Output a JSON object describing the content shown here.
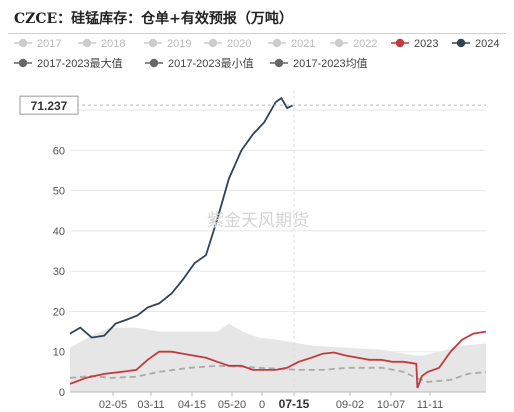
{
  "title": "CZCE：硅锰库存：仓单+有效预报（万吨）",
  "watermark": "紫金天风期货",
  "cursor": {
    "y_readout": "71.237",
    "x_readout": "07-15"
  },
  "colors": {
    "s2023": "#c23a3d",
    "s2024": "#2f4556",
    "inactive": "#cccccc",
    "stat": "#666666",
    "band": "#e6e6e6",
    "mean": "#aaaaaa"
  },
  "chart_data": {
    "type": "line",
    "title": "CZCE：硅锰库存：仓单+有效预报（万吨）",
    "xlabel": "",
    "ylabel": "",
    "ylim": [
      0,
      75
    ],
    "yticks": [
      0,
      10,
      20,
      30,
      40,
      50,
      60,
      70
    ],
    "xticks": [
      "02-05",
      "03-11",
      "04-15",
      "05-20",
      "0",
      "07-15",
      "09-02",
      "10-07",
      "11-11"
    ],
    "grid": true,
    "legend_position": "top",
    "legend": [
      {
        "label": "2017",
        "active": false
      },
      {
        "label": "2018",
        "active": false
      },
      {
        "label": "2019",
        "active": false
      },
      {
        "label": "2020",
        "active": false
      },
      {
        "label": "2021",
        "active": false
      },
      {
        "label": "2022",
        "active": false
      },
      {
        "label": "2023",
        "active": true
      },
      {
        "label": "2024",
        "active": true
      },
      {
        "label": "2017-2023最大值",
        "active": true
      },
      {
        "label": "2017-2023最小值",
        "active": true
      },
      {
        "label": "2017-2023均值",
        "active": true
      }
    ],
    "series": [
      {
        "name": "2024",
        "x": [
          "01-01",
          "01-10",
          "01-20",
          "01-31",
          "02-10",
          "02-20",
          "03-01",
          "03-10",
          "03-20",
          "03-31",
          "04-10",
          "04-20",
          "04-30",
          "05-10",
          "05-20",
          "05-31",
          "06-10",
          "06-20",
          "06-30",
          "07-05",
          "07-10",
          "07-15"
        ],
        "y": [
          14.5,
          16,
          13.5,
          14,
          17,
          18,
          19,
          21,
          22,
          24.5,
          28,
          32,
          34,
          43,
          53,
          60,
          64,
          67,
          72,
          73,
          70.5,
          71.2
        ]
      },
      {
        "name": "2023",
        "x": [
          "01-01",
          "01-15",
          "01-31",
          "02-15",
          "02-28",
          "03-10",
          "03-20",
          "03-31",
          "04-10",
          "04-20",
          "04-30",
          "05-10",
          "05-20",
          "05-31",
          "06-10",
          "06-20",
          "06-30",
          "07-10",
          "07-20",
          "07-31",
          "08-10",
          "08-20",
          "08-31",
          "09-10",
          "09-20",
          "09-30",
          "10-10",
          "10-20",
          "10-31",
          "11-01",
          "11-05",
          "11-10",
          "11-20",
          "11-30",
          "12-10",
          "12-20",
          "12-31"
        ],
        "y": [
          2,
          3.5,
          4.5,
          5,
          5.5,
          8,
          10,
          10,
          9.5,
          9,
          8.5,
          7.5,
          6.5,
          6.5,
          5.5,
          5.5,
          5.5,
          6,
          7.5,
          8.5,
          9.5,
          9.8,
          9,
          8.5,
          8,
          8,
          7.5,
          7.5,
          7,
          1,
          4,
          5,
          6,
          10,
          13,
          14.5,
          15
        ]
      },
      {
        "name": "2017-2023最大值",
        "x": [
          "01-01",
          "01-20",
          "02-05",
          "02-28",
          "03-20",
          "04-15",
          "05-10",
          "05-20",
          "06-01",
          "06-15",
          "07-01",
          "08-01",
          "09-01",
          "10-01",
          "10-31",
          "11-05",
          "11-20",
          "12-10",
          "12-31"
        ],
        "y": [
          11,
          14,
          16,
          16,
          15,
          15,
          15,
          17,
          15,
          13.5,
          13,
          11.5,
          11,
          10.5,
          9,
          9,
          10,
          11.5,
          12
        ]
      },
      {
        "name": "2017-2023最小值",
        "x": [
          "01-01",
          "12-31"
        ],
        "y": [
          0,
          0
        ]
      },
      {
        "name": "2017-2023均值",
        "x": [
          "01-01",
          "01-20",
          "02-05",
          "02-28",
          "03-20",
          "04-15",
          "05-10",
          "05-31",
          "06-15",
          "07-01",
          "07-20",
          "08-10",
          "09-01",
          "10-01",
          "10-20",
          "10-31",
          "11-10",
          "11-30",
          "12-15",
          "12-31"
        ],
        "y": [
          3.5,
          4,
          3.5,
          3.8,
          5,
          6,
          6.5,
          6.3,
          6,
          5.8,
          5.5,
          5.5,
          6,
          6,
          5,
          3.5,
          2.5,
          3,
          4.5,
          5
        ]
      }
    ]
  }
}
